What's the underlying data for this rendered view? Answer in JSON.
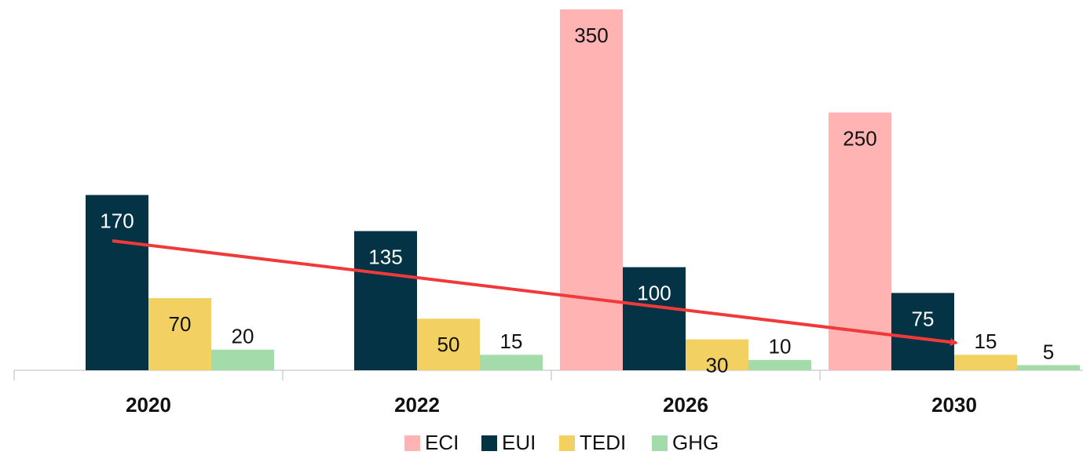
{
  "chart_data": {
    "type": "bar",
    "categories": [
      "2020",
      "2022",
      "2026",
      "2030"
    ],
    "series": [
      {
        "name": "ECI",
        "color": "#ffb3b3",
        "values": [
          null,
          null,
          350,
          250
        ]
      },
      {
        "name": "EUI",
        "color": "#043346",
        "values": [
          170,
          135,
          100,
          75
        ]
      },
      {
        "name": "TEDI",
        "color": "#f2d062",
        "values": [
          70,
          50,
          30,
          15
        ]
      },
      {
        "name": "GHG",
        "color": "#a3dcaa",
        "values": [
          20,
          15,
          10,
          5
        ]
      }
    ],
    "ylim": [
      0,
      350
    ],
    "grid": false,
    "legend": "bottom"
  }
}
